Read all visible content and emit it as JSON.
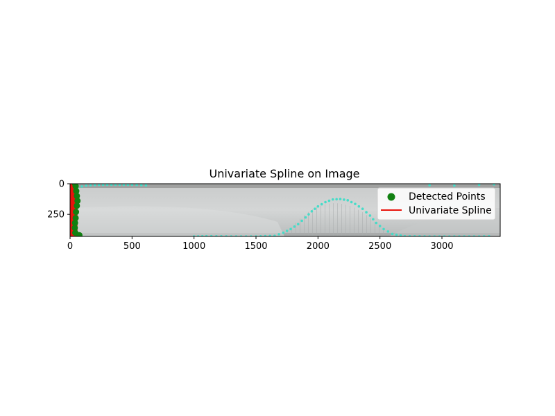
{
  "chart_data": {
    "type": "scatter",
    "title": "Univariate Spline on Image",
    "xlabel": "",
    "ylabel": "",
    "xlim": [
      0,
      3470
    ],
    "ylim": [
      430,
      0
    ],
    "y_inverted": true,
    "x_ticks": [
      0,
      500,
      1000,
      1500,
      2000,
      2500,
      3000
    ],
    "x_tick_labels": [
      "0",
      "500",
      "1000",
      "1500",
      "2000",
      "2500",
      "3000"
    ],
    "y_ticks": [
      0,
      250
    ],
    "y_tick_labels": [
      "0",
      "250"
    ],
    "grid": false,
    "legend_position": "top-right",
    "background": "grayscale photograph of a corrugated surface with a cyan dotted contour",
    "series": [
      {
        "name": "Detected Points",
        "kind": "scatter",
        "color": "#118011",
        "points": [
          [
            40,
            0
          ],
          [
            45,
            20
          ],
          [
            50,
            60
          ],
          [
            55,
            100
          ],
          [
            60,
            140
          ],
          [
            55,
            180
          ],
          [
            48,
            230
          ],
          [
            45,
            280
          ],
          [
            40,
            320
          ],
          [
            38,
            360
          ],
          [
            42,
            400
          ],
          [
            75,
            420
          ]
        ]
      },
      {
        "name": "Univariate Spline",
        "kind": "line",
        "color": "#e8140c",
        "points": [
          [
            25,
            0
          ],
          [
            28,
            40
          ],
          [
            26,
            80
          ],
          [
            30,
            120
          ],
          [
            27,
            160
          ],
          [
            29,
            200
          ],
          [
            26,
            240
          ],
          [
            30,
            280
          ],
          [
            27,
            320
          ],
          [
            29,
            360
          ],
          [
            26,
            400
          ],
          [
            28,
            430
          ]
        ]
      }
    ],
    "image_contour": {
      "color": "#46dcc8",
      "points": [
        [
          60,
          30
        ],
        [
          130,
          15
        ],
        [
          200,
          10
        ],
        [
          300,
          8
        ],
        [
          400,
          8
        ],
        [
          500,
          8
        ],
        [
          650,
          15
        ],
        [
          1000,
          430
        ],
        [
          1100,
          428
        ],
        [
          1300,
          430
        ],
        [
          1500,
          430
        ],
        [
          1650,
          425
        ],
        [
          1720,
          400
        ],
        [
          1780,
          370
        ],
        [
          1840,
          330
        ],
        [
          1900,
          275
        ],
        [
          1950,
          225
        ],
        [
          2000,
          185
        ],
        [
          2060,
          150
        ],
        [
          2120,
          128
        ],
        [
          2180,
          125
        ],
        [
          2240,
          135
        ],
        [
          2300,
          165
        ],
        [
          2360,
          205
        ],
        [
          2420,
          260
        ],
        [
          2470,
          320
        ],
        [
          2530,
          370
        ],
        [
          2600,
          410
        ],
        [
          2700,
          428
        ],
        [
          2900,
          430
        ],
        [
          3100,
          430
        ],
        [
          3300,
          430
        ],
        [
          3420,
          428
        ],
        [
          2900,
          12
        ],
        [
          3100,
          15
        ],
        [
          3300,
          8
        ],
        [
          3420,
          5
        ]
      ]
    }
  }
}
